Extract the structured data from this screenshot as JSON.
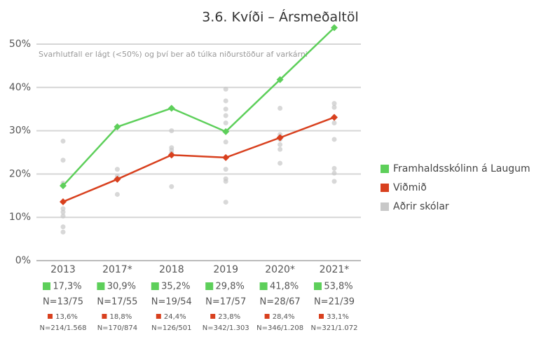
{
  "chart_data": {
    "type": "line",
    "title": "3.6. Kvíði – Ársmeðaltöl",
    "annotation": "Svarhlutfall er lágt (<50%) og því ber að túlka niðurstöður af varkárni",
    "categories": [
      "2013",
      "2017*",
      "2018",
      "2019",
      "2020*",
      "2021*"
    ],
    "ylim": [
      0,
      50
    ],
    "yticks": [
      {
        "value": 0,
        "label": "0%"
      },
      {
        "value": 10,
        "label": "10%"
      },
      {
        "value": 20,
        "label": "20%"
      },
      {
        "value": 30,
        "label": "30%"
      },
      {
        "value": 40,
        "label": "40%"
      },
      {
        "value": 50,
        "label": "50%"
      }
    ],
    "grid": true,
    "legend": "right",
    "series": [
      {
        "name": "Framhaldsskólinn á Laugum",
        "color": "#5dcf5a",
        "values": [
          17.3,
          30.9,
          35.2,
          29.8,
          41.8,
          53.8
        ],
        "value_labels": [
          "17,3%",
          "30,9%",
          "35,2%",
          "29,8%",
          "41,8%",
          "53,8%"
        ],
        "n_labels": [
          "N=13/75",
          "N=17/55",
          "N=19/54",
          "N=17/57",
          "N=28/67",
          "N=21/39"
        ]
      },
      {
        "name": "Viðmið",
        "color": "#d8401e",
        "values": [
          13.6,
          18.8,
          24.4,
          23.8,
          28.4,
          33.1
        ],
        "value_labels": [
          "13,6%",
          "18,8%",
          "24,4%",
          "23,8%",
          "28,4%",
          "33,1%"
        ],
        "n_labels": [
          "N=214/1.568",
          "N=170/874",
          "N=126/501",
          "N=342/1.303",
          "N=346/1.208",
          "N=321/1.072"
        ]
      },
      {
        "name": "Aðrir skólar",
        "color": "#c8c8c8",
        "values": [
          [
            27.6,
            23.2,
            17.9,
            12.0,
            11.2,
            10.3,
            7.8,
            6.6
          ],
          [
            21.1,
            19.5,
            15.3
          ],
          [
            30.0,
            26.1,
            25.5,
            24.8,
            17.1
          ],
          [
            39.6,
            36.9,
            35.0,
            33.5,
            31.8,
            27.4,
            21.1,
            18.9,
            18.3,
            13.5
          ],
          [
            35.2,
            29.1,
            28.0,
            26.8,
            25.7,
            22.5
          ],
          [
            36.3,
            35.4,
            31.8,
            28.0,
            21.3,
            20.2,
            18.3
          ]
        ]
      }
    ]
  }
}
